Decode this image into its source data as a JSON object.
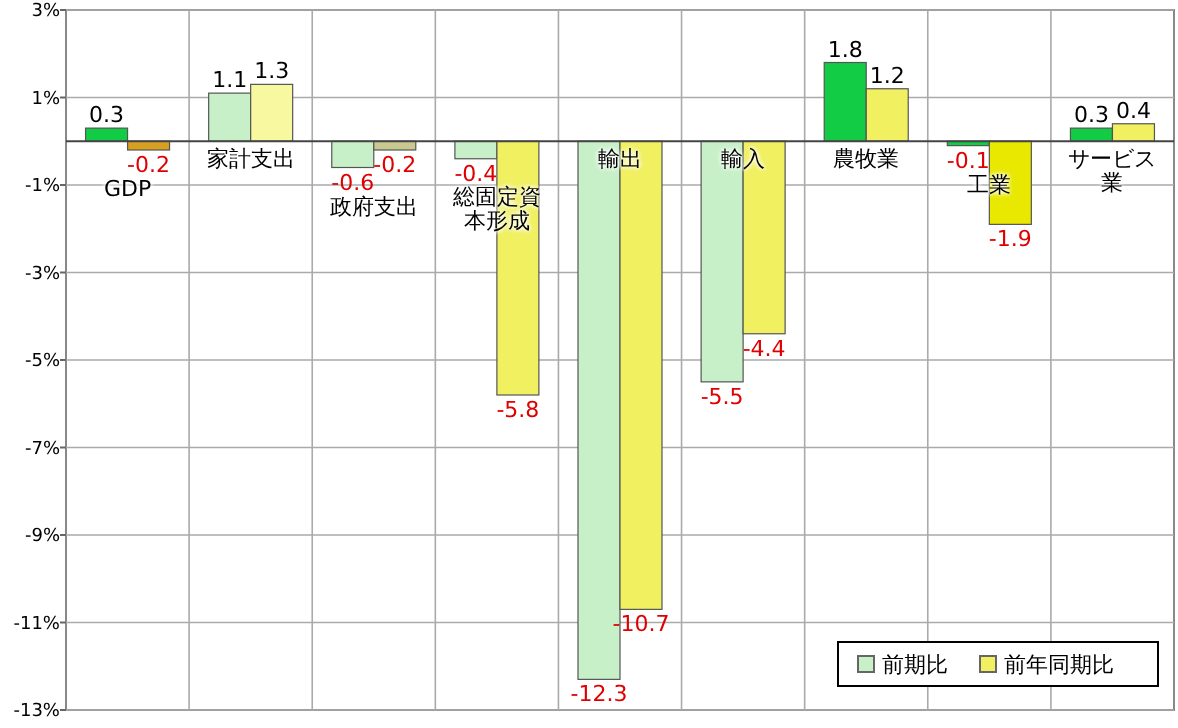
{
  "chart_data": {
    "type": "bar",
    "categories": [
      "GDP",
      "家計支出",
      "政府支出",
      "総固定資本形成",
      "輸出",
      "輸入",
      "農牧業",
      "工業",
      "サービス業"
    ],
    "series": [
      {
        "name": "前期比",
        "color": "#c8f0c8",
        "colors": [
          "#11cc44",
          "#c8f0c8",
          "#c8f0c8",
          "#c8f0c8",
          "#c8f0c8",
          "#c8f0c8",
          "#11cc44",
          "#11cc44",
          "#11cc44"
        ],
        "values": [
          0.3,
          1.1,
          -0.6,
          -0.4,
          -12.3,
          -5.5,
          1.8,
          -0.1,
          0.3
        ]
      },
      {
        "name": "前年同期比",
        "color": "#f0f060",
        "colors": [
          "#d8a020",
          "#f8f8a0",
          "#c8c890",
          "#f0f060",
          "#f0f060",
          "#f0f060",
          "#f0f060",
          "#e8e800",
          "#f0f060"
        ],
        "values": [
          -0.2,
          1.3,
          -0.2,
          -5.8,
          -10.7,
          -4.4,
          1.2,
          -1.9,
          0.4
        ]
      }
    ],
    "ylim": [
      -13,
      3
    ],
    "yticks": [
      {
        "value": 3,
        "label": "3%"
      },
      {
        "value": 1,
        "label": "1%"
      },
      {
        "value": -1,
        "label": "-1%"
      },
      {
        "value": -3,
        "label": "-3%"
      },
      {
        "value": -5,
        "label": "-5%"
      },
      {
        "value": -7,
        "label": "-7%"
      },
      {
        "value": -9,
        "label": "-9%"
      },
      {
        "value": -11,
        "label": "-11%"
      },
      {
        "value": -13,
        "label": "-13%"
      }
    ],
    "grid": true,
    "data_labels": true,
    "legend": "bottom right"
  }
}
